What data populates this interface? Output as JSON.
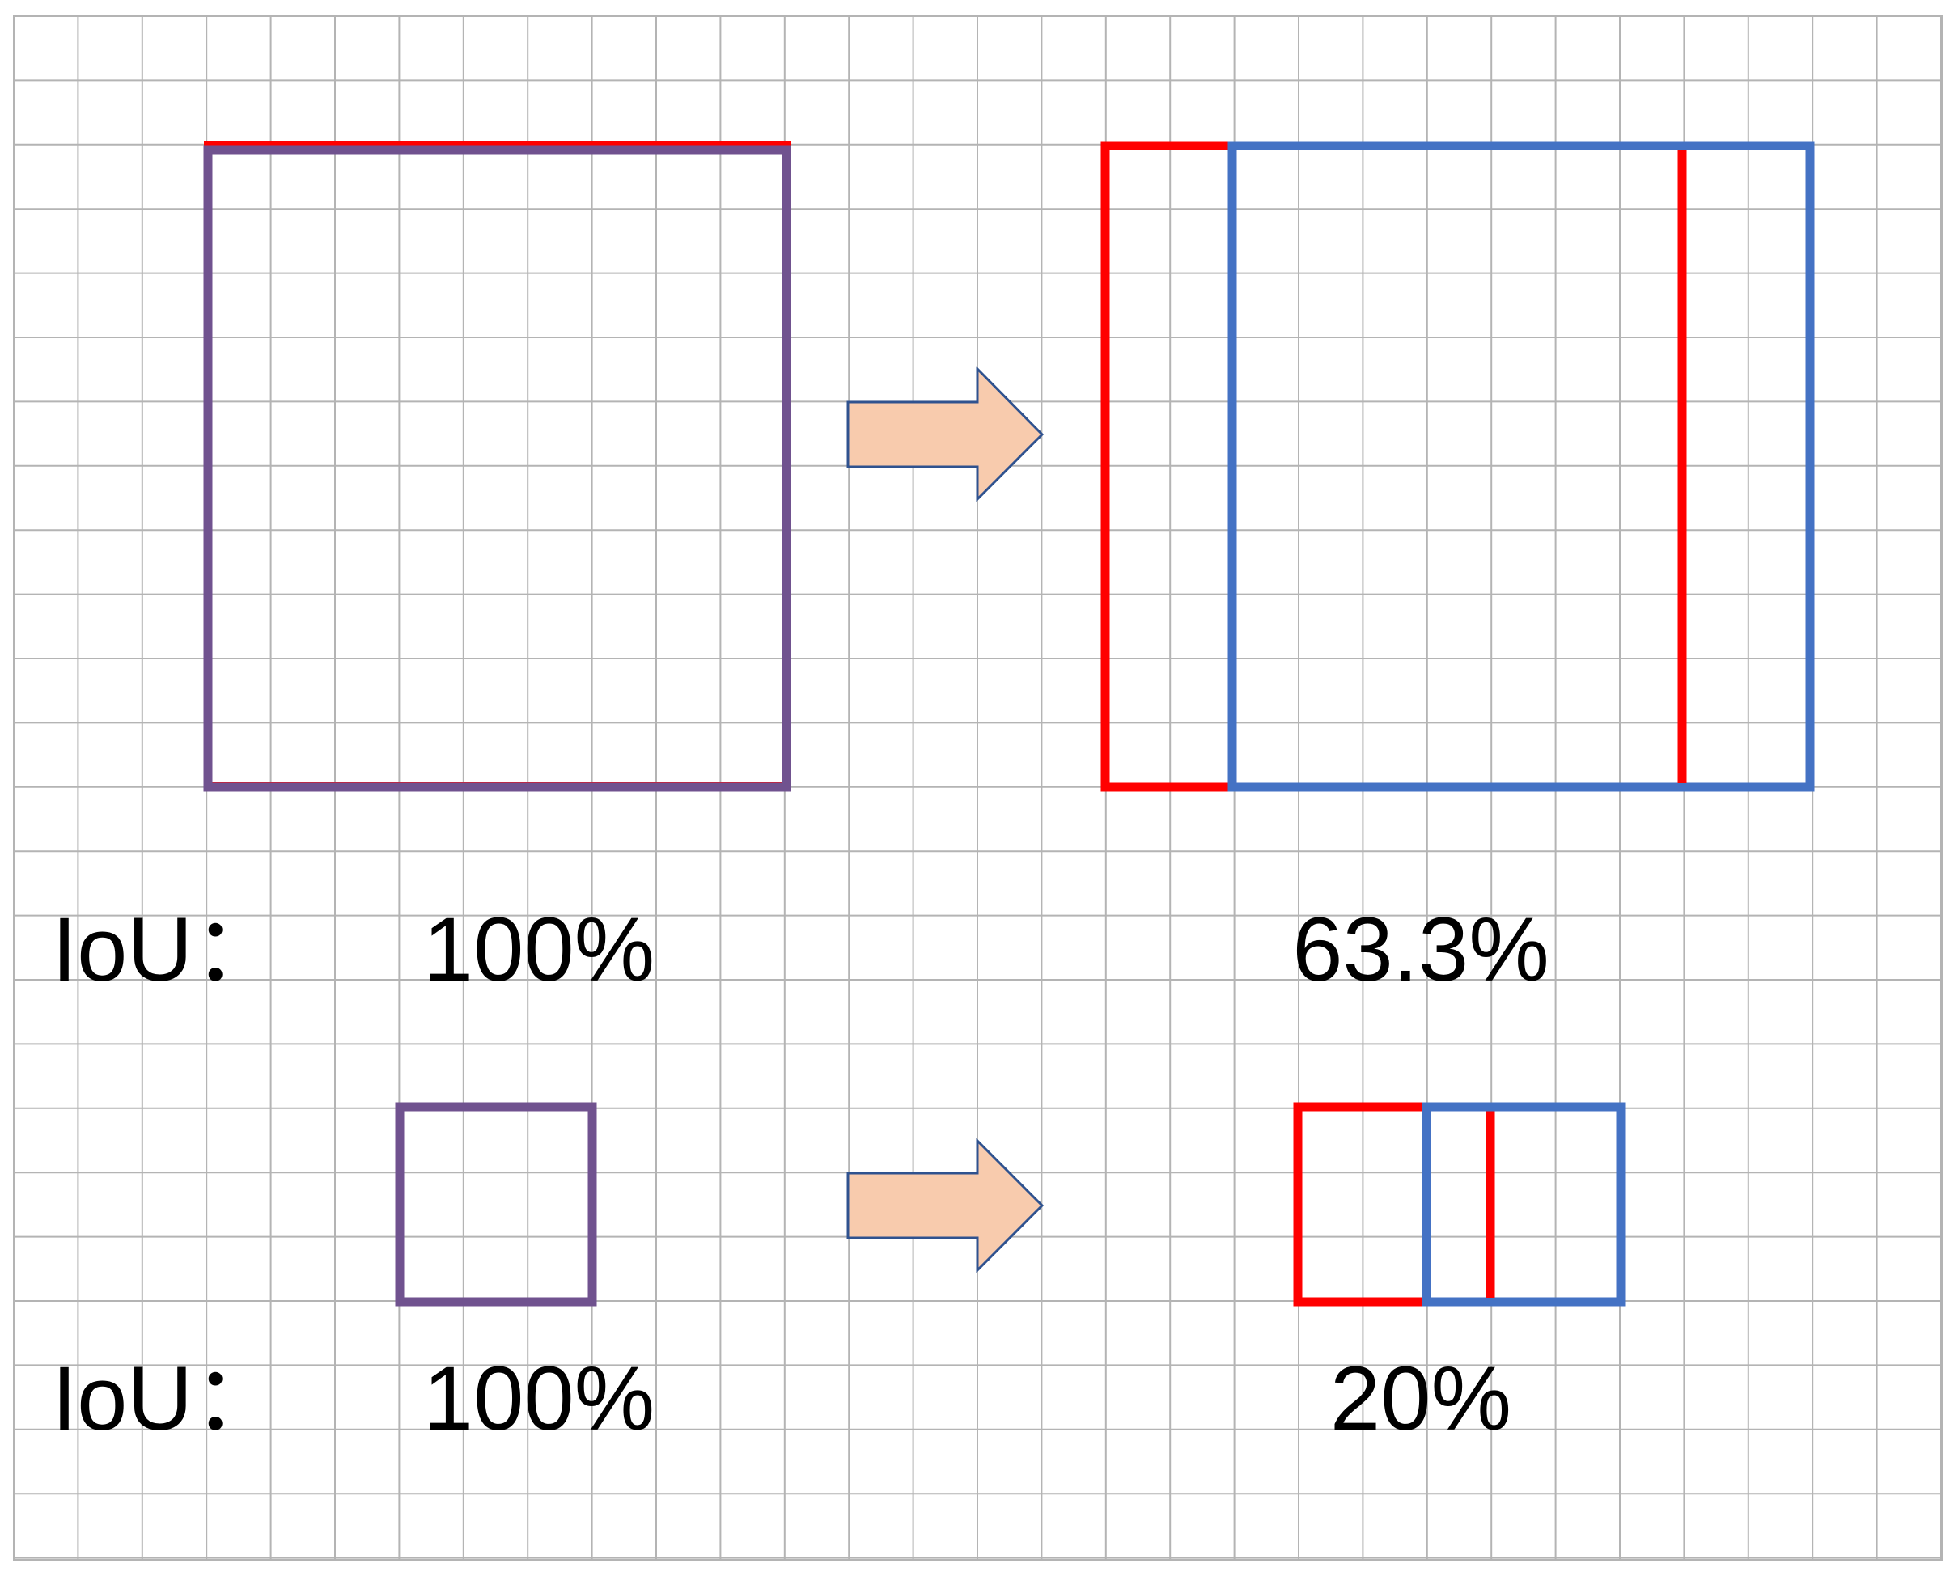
{
  "labels": {
    "iou_label_top": "IoU：",
    "iou_label_bottom": "IoU："
  },
  "values": {
    "top_left": "100%",
    "top_right": "63.3%",
    "bottom_left": "100%",
    "bottom_right": "20%"
  },
  "colors": {
    "grid": "#b4b4b4",
    "ground_truth_box": "#ff0000",
    "predicted_box": "#4472c4",
    "overlap_box": "#70528f",
    "arrow_fill": "#f8cbad",
    "arrow_stroke": "#2f528f",
    "text": "#000000"
  }
}
